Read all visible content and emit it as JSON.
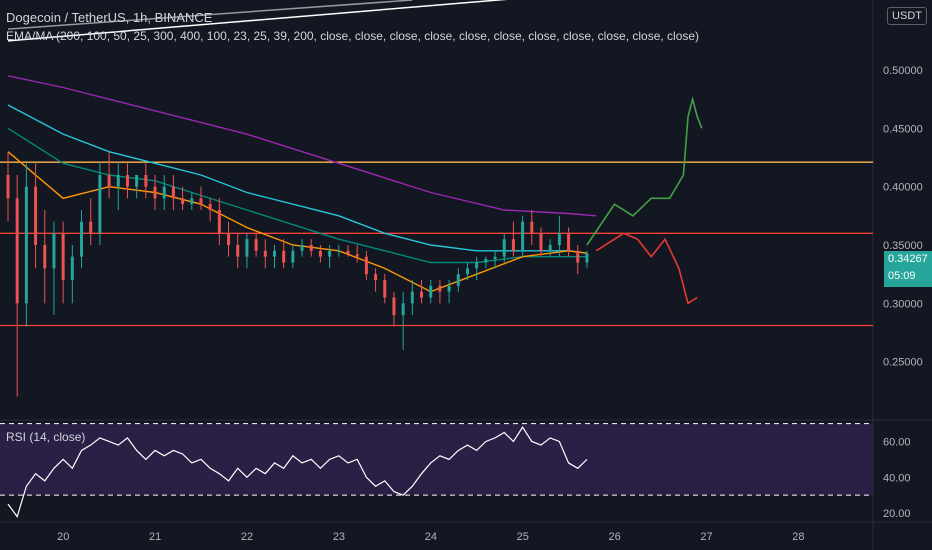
{
  "header": {
    "title": "Dogecoin / TetherUS, 1h, BINANCE",
    "indicator": "EMA/MA (200, 100, 50, 25, 300, 400, 100, 23, 25, 39, 200, close, close, close, close, close, close, close, close, close, close, close)",
    "currency": "USDT"
  },
  "rsi": {
    "label": "RSI (14, close)",
    "ticks": [
      "60.00",
      "40.00",
      "20.00"
    ],
    "levels": [
      70,
      30
    ]
  },
  "last_price": {
    "value": "0.34267",
    "countdown": "05:09"
  },
  "colors": {
    "bg": "#131722",
    "up": "#26a69a",
    "down": "#ef5350",
    "support_resistance": "#f44336",
    "upper_line": "#ffb74d",
    "ema_purple": "#9c27b0",
    "ema_teal": "#26c6da",
    "ema_cyan": "#00897b",
    "ema_orange": "#ff9800",
    "rsi_line": "#ffffff",
    "rsi_fill": "#2a1f45"
  },
  "chart_data": {
    "type": "candlestick",
    "x_ticks": [
      "20",
      "21",
      "22",
      "23",
      "24",
      "25",
      "26",
      "27",
      "28"
    ],
    "y_ticks": [
      "0.50000",
      "0.45000",
      "0.40000",
      "0.35000",
      "0.30000",
      "0.25000"
    ],
    "ylim": [
      0.2,
      0.56
    ],
    "xlim": [
      19.4,
      28.9
    ],
    "horizontal_levels": [
      0.421,
      0.36,
      0.281
    ],
    "candles": [
      [
        19.4,
        0.41,
        0.43,
        0.37,
        0.39
      ],
      [
        19.5,
        0.39,
        0.41,
        0.22,
        0.3
      ],
      [
        19.6,
        0.3,
        0.42,
        0.28,
        0.4
      ],
      [
        19.7,
        0.4,
        0.42,
        0.33,
        0.35
      ],
      [
        19.8,
        0.35,
        0.38,
        0.3,
        0.33
      ],
      [
        19.9,
        0.33,
        0.37,
        0.29,
        0.36
      ],
      [
        20.0,
        0.36,
        0.37,
        0.3,
        0.32
      ],
      [
        20.1,
        0.32,
        0.35,
        0.3,
        0.34
      ],
      [
        20.2,
        0.34,
        0.38,
        0.33,
        0.37
      ],
      [
        20.3,
        0.37,
        0.39,
        0.35,
        0.36
      ],
      [
        20.4,
        0.36,
        0.42,
        0.35,
        0.41
      ],
      [
        20.5,
        0.41,
        0.43,
        0.39,
        0.4
      ],
      [
        20.6,
        0.4,
        0.42,
        0.38,
        0.41
      ],
      [
        20.7,
        0.41,
        0.42,
        0.39,
        0.4
      ],
      [
        20.8,
        0.4,
        0.41,
        0.39,
        0.41
      ],
      [
        20.9,
        0.41,
        0.42,
        0.39,
        0.4
      ],
      [
        21.0,
        0.4,
        0.41,
        0.38,
        0.39
      ],
      [
        21.1,
        0.39,
        0.41,
        0.38,
        0.4
      ],
      [
        21.2,
        0.4,
        0.41,
        0.38,
        0.39
      ],
      [
        21.3,
        0.39,
        0.4,
        0.38,
        0.385
      ],
      [
        21.4,
        0.385,
        0.395,
        0.38,
        0.39
      ],
      [
        21.5,
        0.39,
        0.4,
        0.38,
        0.385
      ],
      [
        21.6,
        0.385,
        0.39,
        0.37,
        0.38
      ],
      [
        21.7,
        0.38,
        0.39,
        0.35,
        0.36
      ],
      [
        21.8,
        0.36,
        0.37,
        0.34,
        0.35
      ],
      [
        21.9,
        0.35,
        0.36,
        0.33,
        0.34
      ],
      [
        22.0,
        0.34,
        0.36,
        0.33,
        0.355
      ],
      [
        22.1,
        0.355,
        0.36,
        0.34,
        0.345
      ],
      [
        22.2,
        0.345,
        0.355,
        0.33,
        0.34
      ],
      [
        22.3,
        0.34,
        0.35,
        0.33,
        0.345
      ],
      [
        22.4,
        0.345,
        0.355,
        0.33,
        0.335
      ],
      [
        22.5,
        0.335,
        0.35,
        0.33,
        0.345
      ],
      [
        22.6,
        0.345,
        0.355,
        0.34,
        0.35
      ],
      [
        22.7,
        0.35,
        0.355,
        0.34,
        0.345
      ],
      [
        22.8,
        0.345,
        0.35,
        0.335,
        0.34
      ],
      [
        22.9,
        0.34,
        0.35,
        0.33,
        0.345
      ],
      [
        23.0,
        0.345,
        0.35,
        0.34,
        0.345
      ],
      [
        23.1,
        0.345,
        0.35,
        0.34,
        0.342
      ],
      [
        23.2,
        0.342,
        0.35,
        0.335,
        0.34
      ],
      [
        23.3,
        0.34,
        0.345,
        0.32,
        0.325
      ],
      [
        23.4,
        0.325,
        0.33,
        0.31,
        0.32
      ],
      [
        23.5,
        0.32,
        0.325,
        0.3,
        0.305
      ],
      [
        23.6,
        0.305,
        0.31,
        0.28,
        0.29
      ],
      [
        23.7,
        0.29,
        0.31,
        0.26,
        0.3
      ],
      [
        23.8,
        0.3,
        0.32,
        0.29,
        0.31
      ],
      [
        23.9,
        0.31,
        0.32,
        0.3,
        0.305
      ],
      [
        24.0,
        0.305,
        0.32,
        0.3,
        0.315
      ],
      [
        24.1,
        0.315,
        0.32,
        0.3,
        0.31
      ],
      [
        24.2,
        0.31,
        0.32,
        0.3,
        0.315
      ],
      [
        24.3,
        0.315,
        0.33,
        0.31,
        0.325
      ],
      [
        24.4,
        0.325,
        0.335,
        0.32,
        0.33
      ],
      [
        24.5,
        0.33,
        0.34,
        0.32,
        0.335
      ],
      [
        24.6,
        0.335,
        0.34,
        0.33,
        0.338
      ],
      [
        24.7,
        0.338,
        0.345,
        0.33,
        0.34
      ],
      [
        24.8,
        0.34,
        0.36,
        0.335,
        0.355
      ],
      [
        24.9,
        0.355,
        0.37,
        0.34,
        0.345
      ],
      [
        25.0,
        0.345,
        0.375,
        0.34,
        0.37
      ],
      [
        25.1,
        0.37,
        0.38,
        0.35,
        0.36
      ],
      [
        25.2,
        0.36,
        0.365,
        0.34,
        0.345
      ],
      [
        25.3,
        0.345,
        0.355,
        0.34,
        0.35
      ],
      [
        25.4,
        0.35,
        0.375,
        0.34,
        0.36
      ],
      [
        25.5,
        0.36,
        0.365,
        0.34,
        0.345
      ],
      [
        25.6,
        0.345,
        0.35,
        0.325,
        0.335
      ],
      [
        25.7,
        0.335,
        0.345,
        0.33,
        0.343
      ]
    ],
    "ema_lines": [
      {
        "color": "#9c27b0",
        "points": [
          [
            19.4,
            0.495
          ],
          [
            20.0,
            0.485
          ],
          [
            21.0,
            0.465
          ],
          [
            22.0,
            0.445
          ],
          [
            23.0,
            0.42
          ],
          [
            24.0,
            0.395
          ],
          [
            24.8,
            0.38
          ],
          [
            25.5,
            0.377
          ],
          [
            25.8,
            0.375
          ]
        ]
      },
      {
        "color": "#26c6da",
        "points": [
          [
            19.4,
            0.47
          ],
          [
            20.0,
            0.445
          ],
          [
            20.5,
            0.43
          ],
          [
            21.0,
            0.42
          ],
          [
            21.5,
            0.41
          ],
          [
            22.0,
            0.395
          ],
          [
            23.0,
            0.375
          ],
          [
            23.5,
            0.36
          ],
          [
            24.0,
            0.35
          ],
          [
            24.5,
            0.345
          ],
          [
            25.0,
            0.345
          ],
          [
            25.5,
            0.345
          ],
          [
            25.7,
            0.343
          ]
        ]
      },
      {
        "color": "#00897b",
        "points": [
          [
            19.4,
            0.45
          ],
          [
            20.0,
            0.42
          ],
          [
            20.5,
            0.41
          ],
          [
            21.0,
            0.405
          ],
          [
            22.0,
            0.38
          ],
          [
            23.0,
            0.355
          ],
          [
            23.5,
            0.345
          ],
          [
            24.0,
            0.335
          ],
          [
            24.5,
            0.335
          ],
          [
            25.0,
            0.34
          ],
          [
            25.5,
            0.34
          ],
          [
            25.7,
            0.34
          ]
        ]
      },
      {
        "color": "#ff9800",
        "points": [
          [
            19.4,
            0.43
          ],
          [
            20.0,
            0.39
          ],
          [
            20.5,
            0.4
          ],
          [
            21.0,
            0.395
          ],
          [
            21.5,
            0.385
          ],
          [
            22.0,
            0.365
          ],
          [
            22.5,
            0.35
          ],
          [
            23.0,
            0.345
          ],
          [
            23.5,
            0.33
          ],
          [
            24.0,
            0.31
          ],
          [
            24.5,
            0.325
          ],
          [
            25.0,
            0.34
          ],
          [
            25.5,
            0.345
          ],
          [
            25.7,
            0.343
          ]
        ]
      }
    ],
    "trend_lines": [
      {
        "color": "#9598a1",
        "points": [
          [
            19.4,
            0.535
          ],
          [
            23.8,
            0.56
          ]
        ]
      },
      {
        "color": "#ffffff",
        "points": [
          [
            19.4,
            0.525
          ],
          [
            25.5,
            0.565
          ]
        ]
      }
    ],
    "drawings": [
      {
        "color": "#43a047",
        "points": [
          [
            25.7,
            0.35
          ],
          [
            26.0,
            0.385
          ],
          [
            26.2,
            0.375
          ],
          [
            26.4,
            0.39
          ],
          [
            26.6,
            0.39
          ],
          [
            26.75,
            0.41
          ],
          [
            26.8,
            0.46
          ],
          [
            26.85,
            0.475
          ],
          [
            26.9,
            0.46
          ],
          [
            26.95,
            0.45
          ]
        ]
      },
      {
        "color": "#e53935",
        "points": [
          [
            25.8,
            0.345
          ],
          [
            26.1,
            0.36
          ],
          [
            26.25,
            0.355
          ],
          [
            26.4,
            0.34
          ],
          [
            26.55,
            0.355
          ],
          [
            26.7,
            0.33
          ],
          [
            26.8,
            0.3
          ],
          [
            26.9,
            0.305
          ]
        ]
      }
    ],
    "rsi_values": [
      [
        19.4,
        25
      ],
      [
        19.5,
        18
      ],
      [
        19.6,
        35
      ],
      [
        19.7,
        42
      ],
      [
        19.8,
        38
      ],
      [
        19.9,
        45
      ],
      [
        20.0,
        50
      ],
      [
        20.1,
        45
      ],
      [
        20.2,
        55
      ],
      [
        20.3,
        58
      ],
      [
        20.4,
        62
      ],
      [
        20.5,
        60
      ],
      [
        20.6,
        58
      ],
      [
        20.7,
        62
      ],
      [
        20.8,
        55
      ],
      [
        20.9,
        50
      ],
      [
        21.0,
        55
      ],
      [
        21.1,
        52
      ],
      [
        21.2,
        55
      ],
      [
        21.3,
        53
      ],
      [
        21.4,
        48
      ],
      [
        21.5,
        50
      ],
      [
        21.6,
        45
      ],
      [
        21.7,
        42
      ],
      [
        21.8,
        38
      ],
      [
        21.9,
        45
      ],
      [
        22.0,
        40
      ],
      [
        22.1,
        45
      ],
      [
        22.2,
        42
      ],
      [
        22.3,
        48
      ],
      [
        22.4,
        45
      ],
      [
        22.5,
        52
      ],
      [
        22.6,
        48
      ],
      [
        22.7,
        50
      ],
      [
        22.8,
        45
      ],
      [
        22.9,
        50
      ],
      [
        23.0,
        52
      ],
      [
        23.1,
        48
      ],
      [
        23.2,
        50
      ],
      [
        23.3,
        40
      ],
      [
        23.4,
        35
      ],
      [
        23.5,
        38
      ],
      [
        23.6,
        32
      ],
      [
        23.7,
        30
      ],
      [
        23.8,
        35
      ],
      [
        23.9,
        42
      ],
      [
        24.0,
        48
      ],
      [
        24.1,
        52
      ],
      [
        24.2,
        50
      ],
      [
        24.3,
        55
      ],
      [
        24.4,
        58
      ],
      [
        24.5,
        55
      ],
      [
        24.6,
        60
      ],
      [
        24.7,
        62
      ],
      [
        24.8,
        65
      ],
      [
        24.9,
        60
      ],
      [
        25.0,
        68
      ],
      [
        25.1,
        60
      ],
      [
        25.2,
        58
      ],
      [
        25.3,
        62
      ],
      [
        25.4,
        60
      ],
      [
        25.5,
        48
      ],
      [
        25.6,
        45
      ],
      [
        25.7,
        50
      ]
    ],
    "rsi_ylim": [
      15,
      72
    ]
  }
}
